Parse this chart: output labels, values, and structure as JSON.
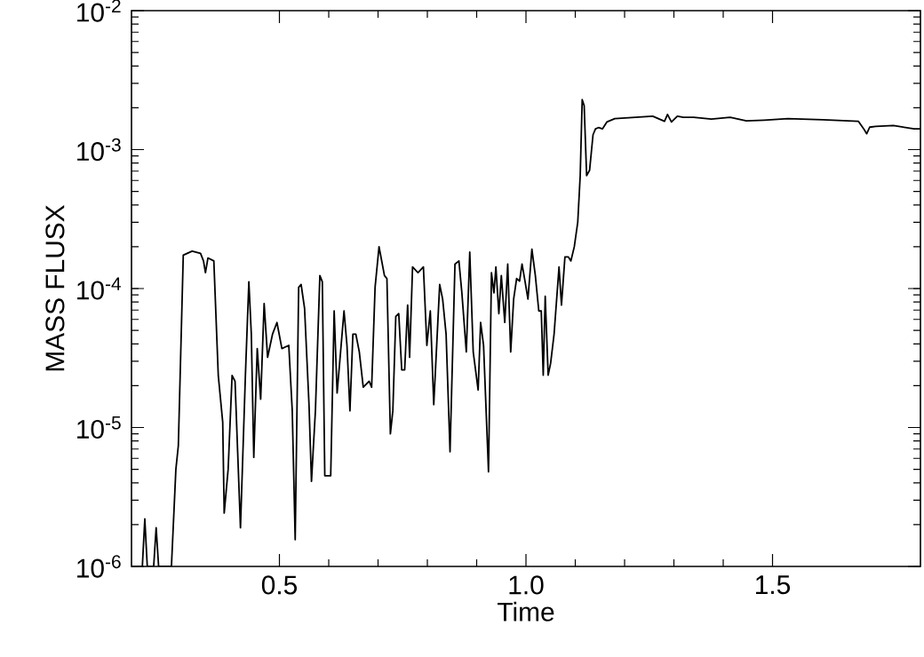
{
  "chart_data": {
    "type": "line",
    "xlabel": "Time",
    "ylabel": "MASS FLUSX",
    "log": "y",
    "marker": "none",
    "line_style": "solid",
    "xlim": [
      0.2,
      1.8
    ],
    "ylim": [
      1e-06,
      0.01
    ],
    "xticks": [
      0.5,
      {
        "value": 1.0,
        "label": "1.0"
      },
      1.5
    ],
    "yticks": [
      {
        "value": 1e-06,
        "label": "10$^{-6}$"
      },
      {
        "value": 1e-05,
        "label": "10$^{-5}$"
      },
      {
        "value": 0.0001,
        "label": "10$^{-4}$"
      },
      {
        "value": 0.001,
        "label": "10$^{-3}$"
      },
      {
        "value": 0.01,
        "label": "10$^{-2}$"
      }
    ],
    "series": [
      {
        "color": "#000000",
        "x": [
          0.2,
          0.222,
          0.227,
          0.232,
          0.245,
          0.25,
          0.255,
          0.281,
          0.29,
          0.295,
          0.305,
          0.323,
          0.34,
          0.346,
          0.35,
          0.355,
          0.367,
          0.376,
          0.385,
          0.388,
          0.396,
          0.404,
          0.41,
          0.421,
          0.431,
          0.438,
          0.443,
          0.448,
          0.455,
          0.462,
          0.469,
          0.476,
          0.486,
          0.495,
          0.505,
          0.519,
          0.526,
          0.532,
          0.539,
          0.544,
          0.551,
          0.56,
          0.565,
          0.573,
          0.582,
          0.587,
          0.592,
          0.604,
          0.611,
          0.617,
          0.624,
          0.631,
          0.637,
          0.643,
          0.649,
          0.655,
          0.662,
          0.67,
          0.682,
          0.687,
          0.694,
          0.702,
          0.713,
          0.718,
          0.725,
          0.73,
          0.736,
          0.742,
          0.748,
          0.754,
          0.76,
          0.764,
          0.77,
          0.781,
          0.792,
          0.799,
          0.806,
          0.813,
          0.825,
          0.831,
          0.838,
          0.846,
          0.856,
          0.864,
          0.87,
          0.879,
          0.886,
          0.893,
          0.903,
          0.908,
          0.914,
          0.924,
          0.93,
          0.935,
          0.939,
          0.945,
          0.95,
          0.957,
          0.963,
          0.969,
          0.975,
          0.981,
          0.987,
          0.992,
          0.998,
          1.004,
          1.012,
          1.019,
          1.026,
          1.031,
          1.035,
          1.039,
          1.045,
          1.05,
          1.057,
          1.067,
          1.072,
          1.079,
          1.086,
          1.091,
          1.098,
          1.105,
          1.11,
          1.114,
          1.118,
          1.123,
          1.129,
          1.136,
          1.141,
          1.147,
          1.155,
          1.164,
          1.18,
          1.257,
          1.281,
          1.287,
          1.295,
          1.307,
          1.319,
          1.34,
          1.376,
          1.414,
          1.447,
          1.483,
          1.531,
          1.602,
          1.674,
          1.685,
          1.691,
          1.697,
          1.709,
          1.745,
          1.787,
          1.8
        ],
        "values": [
          1e-06,
          1e-06,
          2.2e-06,
          1e-06,
          1e-06,
          1.9e-06,
          1e-06,
          1e-06,
          5e-06,
          7.4e-06,
          0.000174,
          0.000186,
          0.000179,
          0.000158,
          0.00013,
          0.000166,
          0.000158,
          2.37e-05,
          1.09e-05,
          2.42e-06,
          5e-06,
          2.37e-05,
          2.15e-05,
          1.9e-06,
          2.37e-05,
          0.000112,
          4.7e-05,
          6.1e-06,
          3.7e-05,
          1.6e-05,
          7.8e-05,
          3.2e-05,
          4.7e-05,
          5.7e-05,
          3.7e-05,
          3.9e-05,
          1.32e-05,
          1.56e-06,
          0.000102,
          0.000107,
          7.2e-05,
          1.46e-05,
          4.1e-06,
          1.32e-05,
          0.000124,
          0.000112,
          4.5e-06,
          4.5e-06,
          6.9e-05,
          1.77e-05,
          3.5e-05,
          6.9e-05,
          3.9e-05,
          1.32e-05,
          4.7e-05,
          4.7e-05,
          3.5e-05,
          1.95e-05,
          2.15e-05,
          1.95e-05,
          0.000102,
          0.0002,
          0.000124,
          0.000118,
          9e-06,
          1.32e-05,
          6.3e-05,
          6.6e-05,
          2.6e-05,
          2.6e-05,
          7.6e-05,
          3.2e-05,
          0.000143,
          0.00013,
          0.000143,
          3.9e-05,
          6.9e-05,
          1.46e-05,
          0.000107,
          8.4e-05,
          4.7e-05,
          6.7e-06,
          0.00015,
          0.000158,
          9.3e-05,
          3.5e-05,
          0.000183,
          3.5e-05,
          1.86e-05,
          5.7e-05,
          3.9e-05,
          4.8e-06,
          0.00013,
          9.3e-05,
          0.000143,
          6.6e-05,
          0.000124,
          5.7e-05,
          0.00015,
          3.5e-05,
          8.4e-05,
          0.000118,
          0.000113,
          0.00015,
          0.000113,
          8.4e-05,
          0.000192,
          0.000124,
          6.9e-05,
          6.9e-05,
          2.38e-05,
          8.8e-05,
          2.38e-05,
          2.9e-05,
          4.7e-05,
          0.000143,
          7.6e-05,
          0.000169,
          0.000169,
          0.000158,
          0.0002,
          0.0003,
          0.00065,
          0.00229,
          0.00207,
          0.00065,
          0.00071,
          0.00128,
          0.00141,
          0.00144,
          0.00141,
          0.00158,
          0.00167,
          0.00174,
          0.0016,
          0.00179,
          0.00158,
          0.00174,
          0.00171,
          0.00171,
          0.00166,
          0.00171,
          0.00161,
          0.00163,
          0.00167,
          0.00164,
          0.0016,
          0.00141,
          0.0013,
          0.00145,
          0.00147,
          0.00149,
          0.00141,
          0.00141
        ]
      }
    ]
  }
}
